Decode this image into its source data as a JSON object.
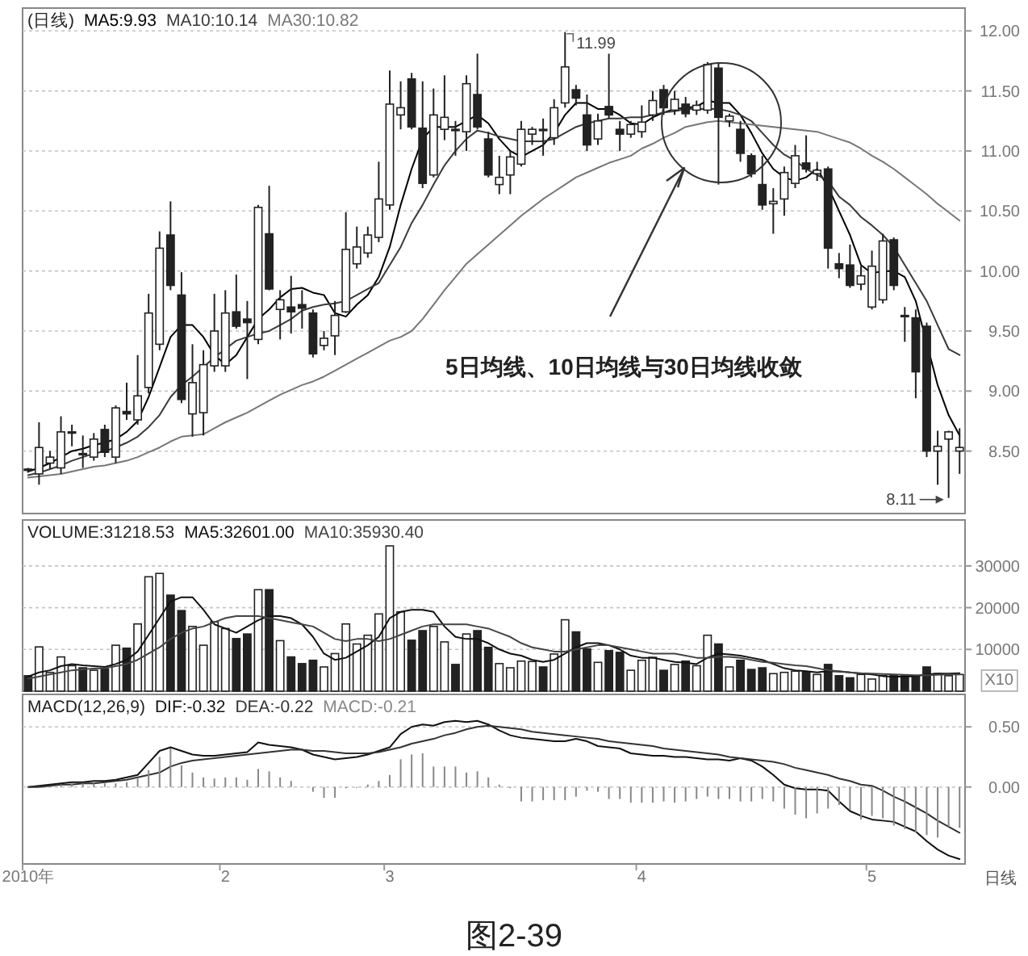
{
  "chart_data": [
    {
      "type": "candlestick",
      "title": "(日线)",
      "categories": [
        null,
        null,
        null,
        null,
        null,
        null,
        null,
        null,
        null,
        null,
        null,
        null,
        null,
        null,
        null,
        null,
        null,
        null,
        null,
        null,
        null,
        null,
        null,
        null,
        null,
        null,
        null,
        null,
        null,
        null,
        null,
        null,
        null,
        null,
        null,
        null,
        null,
        null,
        null,
        null,
        null,
        null,
        null,
        null,
        null,
        null,
        null,
        null,
        null,
        null,
        null,
        null,
        null,
        null,
        null,
        null,
        null,
        null,
        null,
        null,
        null,
        null,
        null,
        null,
        null,
        null,
        null,
        null,
        null,
        null,
        null,
        null,
        null,
        null,
        null,
        null,
        null,
        null,
        null,
        null,
        null,
        null,
        null,
        null,
        null,
        null
      ],
      "ohlc": [
        [
          8.35,
          8.36,
          8.32,
          8.34
        ],
        [
          8.31,
          8.74,
          8.22,
          8.53
        ],
        [
          8.4,
          8.5,
          8.35,
          8.45
        ],
        [
          8.36,
          8.79,
          8.31,
          8.66
        ],
        [
          8.65,
          8.72,
          8.54,
          8.66
        ],
        [
          8.48,
          8.63,
          8.36,
          8.47
        ],
        [
          8.45,
          8.65,
          8.42,
          8.6
        ],
        [
          8.68,
          8.72,
          8.45,
          8.49
        ],
        [
          8.45,
          8.88,
          8.4,
          8.86
        ],
        [
          8.83,
          9.07,
          8.76,
          8.81
        ],
        [
          8.76,
          9.3,
          8.72,
          8.96
        ],
        [
          9.03,
          9.81,
          8.98,
          9.65
        ],
        [
          9.39,
          10.33,
          9.34,
          10.19
        ],
        [
          10.3,
          10.58,
          9.84,
          9.88
        ],
        [
          9.8,
          9.99,
          8.9,
          8.93
        ],
        [
          8.81,
          9.39,
          8.62,
          9.07
        ],
        [
          8.82,
          9.34,
          8.63,
          9.22
        ],
        [
          9.21,
          9.81,
          9.16,
          9.5
        ],
        [
          9.21,
          9.84,
          9.16,
          9.65
        ],
        [
          9.66,
          9.97,
          9.52,
          9.54
        ],
        [
          9.6,
          9.75,
          9.1,
          9.57
        ],
        [
          9.43,
          10.55,
          9.39,
          10.53
        ],
        [
          10.31,
          10.71,
          9.84,
          9.85
        ],
        [
          9.68,
          9.84,
          9.43,
          9.76
        ],
        [
          9.7,
          9.96,
          9.48,
          9.66
        ],
        [
          9.72,
          9.84,
          9.52,
          9.69
        ],
        [
          9.65,
          9.68,
          9.28,
          9.31
        ],
        [
          9.38,
          9.5,
          9.34,
          9.44
        ],
        [
          9.46,
          9.75,
          9.3,
          9.63
        ],
        [
          9.66,
          10.49,
          9.65,
          10.18
        ],
        [
          10.06,
          10.37,
          10.02,
          10.2
        ],
        [
          10.15,
          10.37,
          10.11,
          10.3
        ],
        [
          10.28,
          10.91,
          10.24,
          10.6
        ],
        [
          10.55,
          11.67,
          10.51,
          11.39
        ],
        [
          11.3,
          11.58,
          11.18,
          11.36
        ],
        [
          11.6,
          11.65,
          11.18,
          11.2
        ],
        [
          11.19,
          11.58,
          10.69,
          10.73
        ],
        [
          10.8,
          11.52,
          10.78,
          11.3
        ],
        [
          11.18,
          11.63,
          11.09,
          11.28
        ],
        [
          11.18,
          11.25,
          10.96,
          11.17
        ],
        [
          11.16,
          11.63,
          11.0,
          11.56
        ],
        [
          11.47,
          11.81,
          11.18,
          11.2
        ],
        [
          11.1,
          11.16,
          10.78,
          10.8
        ],
        [
          10.72,
          10.96,
          10.64,
          10.78
        ],
        [
          10.8,
          11.0,
          10.64,
          10.95
        ],
        [
          10.89,
          11.25,
          10.87,
          11.18
        ],
        [
          11.14,
          11.2,
          11.05,
          11.18
        ],
        [
          11.18,
          11.27,
          10.96,
          11.17
        ],
        [
          11.11,
          11.43,
          11.05,
          11.36
        ],
        [
          11.4,
          11.99,
          11.36,
          11.7
        ],
        [
          11.51,
          11.55,
          11.38,
          11.44
        ],
        [
          11.3,
          11.47,
          11.0,
          11.05
        ],
        [
          11.1,
          11.31,
          11.05,
          11.25
        ],
        [
          11.37,
          11.81,
          11.27,
          11.3
        ],
        [
          11.18,
          11.25,
          11.0,
          11.14
        ],
        [
          11.14,
          11.25,
          11.11,
          11.22
        ],
        [
          11.16,
          11.38,
          11.11,
          11.24
        ],
        [
          11.3,
          11.5,
          11.25,
          11.42
        ],
        [
          11.51,
          11.55,
          11.3,
          11.36
        ],
        [
          11.34,
          11.5,
          11.3,
          11.43
        ],
        [
          11.39,
          11.45,
          11.28,
          11.31
        ],
        [
          11.34,
          11.42,
          11.3,
          11.38
        ],
        [
          11.34,
          11.74,
          11.31,
          11.72
        ],
        [
          11.69,
          11.74,
          10.72,
          11.28
        ],
        [
          11.25,
          11.31,
          11.2,
          11.29
        ],
        [
          11.18,
          11.25,
          10.91,
          10.98
        ],
        [
          10.96,
          10.98,
          10.78,
          10.81
        ],
        [
          10.72,
          10.96,
          10.51,
          10.55
        ],
        [
          10.56,
          10.69,
          10.31,
          10.58
        ],
        [
          10.6,
          10.87,
          10.46,
          10.82
        ],
        [
          10.73,
          11.05,
          10.69,
          10.96
        ],
        [
          10.9,
          11.13,
          10.82,
          10.85
        ],
        [
          10.81,
          10.91,
          10.75,
          10.84
        ],
        [
          10.85,
          10.87,
          10.02,
          10.19
        ],
        [
          10.06,
          10.15,
          9.94,
          10.02
        ],
        [
          10.05,
          10.22,
          9.86,
          9.88
        ],
        [
          9.89,
          10.04,
          9.84,
          9.96
        ],
        [
          9.7,
          10.17,
          9.68,
          10.04
        ],
        [
          9.76,
          10.31,
          9.73,
          10.25
        ],
        [
          10.26,
          10.28,
          9.84,
          9.88
        ],
        [
          9.63,
          9.7,
          9.41,
          9.62
        ],
        [
          9.61,
          9.68,
          8.94,
          9.16
        ],
        [
          9.54,
          9.57,
          8.45,
          8.5
        ],
        [
          8.5,
          8.67,
          8.22,
          8.54
        ],
        [
          8.6,
          8.67,
          8.11,
          8.66
        ],
        [
          8.5,
          8.69,
          8.31,
          8.53
        ]
      ],
      "colors": [
        "#222222",
        "#ffffff",
        "#ffffff",
        "#ffffff",
        "#ffffff",
        "#222222",
        "#ffffff",
        "#222222",
        "#ffffff",
        "#222222",
        "#ffffff",
        "#ffffff",
        "#ffffff",
        "#222222",
        "#222222",
        "#ffffff",
        "#ffffff",
        "#ffffff",
        "#ffffff",
        "#222222",
        "#222222",
        "#ffffff",
        "#222222",
        "#ffffff",
        "#222222",
        "#222222",
        "#222222",
        "#ffffff",
        "#ffffff",
        "#ffffff",
        "#ffffff",
        "#ffffff",
        "#ffffff",
        "#ffffff",
        "#ffffff",
        "#222222",
        "#222222",
        "#ffffff",
        "#ffffff",
        "#222222",
        "#ffffff",
        "#222222",
        "#222222",
        "#ffffff",
        "#ffffff",
        "#ffffff",
        "#ffffff",
        "#222222",
        "#ffffff",
        "#ffffff",
        "#222222",
        "#222222",
        "#ffffff",
        "#222222",
        "#222222",
        "#ffffff",
        "#ffffff",
        "#ffffff",
        "#222222",
        "#ffffff",
        "#222222",
        "#ffffff",
        "#ffffff",
        "#222222",
        "#ffffff",
        "#222222",
        "#222222",
        "#222222",
        "#ffffff",
        "#ffffff",
        "#ffffff",
        "#222222",
        "#ffffff",
        "#222222",
        "#222222",
        "#222222",
        "#ffffff",
        "#ffffff",
        "#ffffff",
        "#222222",
        "#222222",
        "#222222",
        "#222222",
        "#ffffff",
        "#ffffff",
        "#ffffff"
      ],
      "series": [
        {
          "name": "MA5:9.93",
          "type": "line",
          "color": "#000000",
          "values": [
            8.33,
            8.36,
            8.4,
            8.45,
            8.5,
            8.52,
            8.55,
            8.57,
            8.6,
            8.66,
            8.75,
            8.95,
            9.2,
            9.45,
            9.55,
            9.55,
            9.45,
            9.3,
            9.22,
            9.3,
            9.45,
            9.6,
            9.68,
            9.78,
            9.85,
            9.86,
            9.82,
            9.8,
            9.65,
            9.62,
            9.72,
            9.8,
            9.95,
            10.2,
            10.55,
            10.85,
            11.1,
            11.2,
            11.2,
            11.2,
            11.25,
            11.3,
            11.23,
            11.1,
            11.0,
            10.95,
            11.0,
            11.05,
            11.15,
            11.3,
            11.4,
            11.4,
            11.35,
            11.35,
            11.3,
            11.23,
            11.22,
            11.28,
            11.32,
            11.35,
            11.36,
            11.37,
            11.42,
            11.4,
            11.4,
            11.3,
            11.15,
            10.98,
            10.85,
            10.78,
            10.75,
            10.78,
            10.85,
            10.7,
            10.5,
            10.3,
            10.05,
            9.98,
            10.0,
            10.0,
            9.95,
            9.75,
            9.4,
            9.05,
            8.8,
            8.63
          ]
        },
        {
          "name": "MA10:10.14",
          "type": "line",
          "color": "#3a3a3a",
          "values": [
            8.3,
            8.32,
            8.35,
            8.38,
            8.42,
            8.45,
            8.48,
            8.5,
            8.53,
            8.57,
            8.62,
            8.7,
            8.8,
            8.95,
            9.05,
            9.12,
            9.2,
            9.28,
            9.35,
            9.42,
            9.45,
            9.48,
            9.5,
            9.55,
            9.6,
            9.67,
            9.7,
            9.72,
            9.73,
            9.75,
            9.8,
            9.85,
            9.9,
            10.05,
            10.2,
            10.4,
            10.55,
            10.72,
            10.88,
            11.0,
            11.1,
            11.17,
            11.15,
            11.12,
            11.1,
            11.08,
            11.08,
            11.08,
            11.1,
            11.15,
            11.2,
            11.23,
            11.25,
            11.27,
            11.27,
            11.28,
            11.28,
            11.3,
            11.32,
            11.33,
            11.35,
            11.35,
            11.35,
            11.35,
            11.33,
            11.3,
            11.25,
            11.15,
            11.05,
            10.97,
            10.92,
            10.85,
            10.8,
            10.75,
            10.62,
            10.55,
            10.45,
            10.38,
            10.3,
            10.2,
            10.05,
            9.9,
            9.75,
            9.55,
            9.35,
            9.3
          ]
        },
        {
          "name": "MA30:10.82",
          "type": "line",
          "color": "#777777",
          "values": [
            8.28,
            8.29,
            8.3,
            8.31,
            8.33,
            8.35,
            8.37,
            8.38,
            8.4,
            8.42,
            8.45,
            8.49,
            8.53,
            8.58,
            8.62,
            8.63,
            8.64,
            8.69,
            8.74,
            8.78,
            8.82,
            8.87,
            8.92,
            8.97,
            9.01,
            9.05,
            9.08,
            9.12,
            9.17,
            9.22,
            9.27,
            9.32,
            9.37,
            9.42,
            9.45,
            9.5,
            9.6,
            9.72,
            9.84,
            9.95,
            10.06,
            10.14,
            10.22,
            10.3,
            10.38,
            10.46,
            10.53,
            10.6,
            10.66,
            10.72,
            10.78,
            10.82,
            10.86,
            10.9,
            10.93,
            10.96,
            11.02,
            11.06,
            11.11,
            11.15,
            11.2,
            11.22,
            11.24,
            11.25,
            11.24,
            11.23,
            11.22,
            11.21,
            11.2,
            11.19,
            11.18,
            11.17,
            11.16,
            11.13,
            11.1,
            11.07,
            11.02,
            10.96,
            10.91,
            10.85,
            10.78,
            10.71,
            10.64,
            10.56,
            10.49,
            10.42
          ]
        }
      ],
      "ylim": [
        7.98,
        12.19
      ],
      "yticks": [
        {
          "value": 8.5,
          "label": "8.50"
        },
        {
          "value": 9,
          "label": "9.00"
        },
        {
          "value": 9.5,
          "label": "9.50"
        },
        {
          "value": 10,
          "label": "10.00"
        },
        {
          "value": 10.5,
          "label": "10.50"
        },
        {
          "value": 11,
          "label": "11.00"
        },
        {
          "value": 11.5,
          "label": "11.50"
        },
        {
          "value": 12,
          "label": "12.00"
        }
      ],
      "grid": "y",
      "legend": "top left",
      "tick_labels": "y",
      "annotations": [
        "11.99",
        "8.11",
        "5日均线、10日均线与30日均线收敛"
      ]
    },
    {
      "type": "bar",
      "categories": [
        null,
        null,
        null,
        null,
        null,
        null,
        null,
        null,
        null,
        null,
        null,
        null,
        null,
        null,
        null,
        null,
        null,
        null,
        null,
        null,
        null,
        null,
        null,
        null,
        null,
        null,
        null,
        null,
        null,
        null,
        null,
        null,
        null,
        null,
        null,
        null,
        null,
        null,
        null,
        null,
        null,
        null,
        null,
        null,
        null,
        null,
        null,
        null,
        null,
        null,
        null,
        null,
        null,
        null,
        null,
        null,
        null,
        null,
        null,
        null,
        null,
        null,
        null,
        null,
        null,
        null,
        null,
        null,
        null,
        null,
        null,
        null,
        null,
        null,
        null,
        null,
        null,
        null,
        null,
        null,
        null,
        null,
        null,
        null,
        null,
        null
      ],
      "series": [
        {
          "name": "VOLUME:31218.53",
          "type": "bar",
          "color": "#222222",
          "colors": [
            "#222222",
            "#ffffff",
            "#ffffff",
            "#ffffff",
            "#ffffff",
            "#222222",
            "#ffffff",
            "#222222",
            "#ffffff",
            "#222222",
            "#ffffff",
            "#ffffff",
            "#ffffff",
            "#222222",
            "#222222",
            "#ffffff",
            "#ffffff",
            "#ffffff",
            "#ffffff",
            "#222222",
            "#222222",
            "#ffffff",
            "#222222",
            "#ffffff",
            "#222222",
            "#222222",
            "#222222",
            "#ffffff",
            "#ffffff",
            "#ffffff",
            "#ffffff",
            "#ffffff",
            "#ffffff",
            "#ffffff",
            "#ffffff",
            "#222222",
            "#222222",
            "#ffffff",
            "#ffffff",
            "#222222",
            "#ffffff",
            "#222222",
            "#222222",
            "#ffffff",
            "#ffffff",
            "#ffffff",
            "#ffffff",
            "#222222",
            "#ffffff",
            "#ffffff",
            "#222222",
            "#222222",
            "#ffffff",
            "#222222",
            "#222222",
            "#ffffff",
            "#ffffff",
            "#ffffff",
            "#222222",
            "#ffffff",
            "#222222",
            "#ffffff",
            "#ffffff",
            "#222222",
            "#ffffff",
            "#222222",
            "#222222",
            "#222222",
            "#ffffff",
            "#ffffff",
            "#ffffff",
            "#222222",
            "#ffffff",
            "#222222",
            "#222222",
            "#222222",
            "#ffffff",
            "#ffffff",
            "#ffffff",
            "#222222",
            "#222222",
            "#222222",
            "#222222",
            "#ffffff",
            "#ffffff",
            "#ffffff"
          ],
          "values": [
            3700,
            10600,
            4500,
            8200,
            6100,
            5600,
            5000,
            5300,
            11000,
            10300,
            16100,
            27400,
            28200,
            23000,
            19300,
            15500,
            11000,
            16600,
            15000,
            12600,
            13700,
            24300,
            24300,
            12100,
            8200,
            6600,
            7400,
            5800,
            9000,
            16100,
            11300,
            13400,
            18500,
            34800,
            19000,
            12200,
            14500,
            15500,
            11800,
            6400,
            13700,
            14500,
            10500,
            6600,
            5600,
            7200,
            7100,
            5800,
            8900,
            17100,
            14200,
            10100,
            6900,
            9700,
            9300,
            5000,
            7400,
            8100,
            5000,
            6400,
            7200,
            6100,
            13400,
            11300,
            5800,
            7400,
            5200,
            5600,
            4200,
            4500,
            4800,
            4500,
            4000,
            6400,
            3700,
            3200,
            4000,
            2900,
            3700,
            3700,
            3700,
            3700,
            5800,
            4200,
            3700,
            4000
          ]
        },
        {
          "name": "MA5:32601.00",
          "type": "line",
          "color": "#111111",
          "values": [
            3500,
            4500,
            5000,
            6000,
            6500,
            6200,
            6000,
            5800,
            6500,
            7500,
            9500,
            13500,
            17500,
            21500,
            22500,
            22500,
            19500,
            16000,
            15000,
            14000,
            15500,
            17000,
            18000,
            18000,
            17500,
            16000,
            13000,
            9000,
            7500,
            8000,
            9500,
            11000,
            13000,
            17500,
            19000,
            19500,
            19500,
            19000,
            15500,
            13000,
            12500,
            12500,
            11500,
            10000,
            9000,
            8500,
            7500,
            7000,
            7500,
            9000,
            10500,
            11500,
            11500,
            11000,
            10000,
            8500,
            8000,
            8000,
            7500,
            7000,
            6800,
            6500,
            8000,
            9000,
            8800,
            8500,
            8000,
            7500,
            6500,
            5500,
            5000,
            4800,
            4500,
            4800,
            4700,
            4500,
            4200,
            4000,
            3600,
            3500,
            3500,
            3600,
            4000,
            4200,
            4200,
            4300
          ]
        },
        {
          "name": "MA10:35930.40",
          "type": "line",
          "color": "#444444",
          "values": [
            3000,
            3500,
            4000,
            4500,
            5000,
            5200,
            5400,
            5500,
            6000,
            6500,
            7500,
            9000,
            10500,
            12500,
            14000,
            15000,
            15500,
            16500,
            17500,
            18000,
            18000,
            18000,
            17500,
            17000,
            16500,
            16000,
            15500,
            14000,
            12500,
            12000,
            12500,
            12500,
            12000,
            12500,
            13500,
            14500,
            15500,
            16000,
            16000,
            16000,
            16000,
            15500,
            15000,
            14000,
            13000,
            11500,
            10500,
            10000,
            9500,
            9500,
            10000,
            10500,
            11000,
            11000,
            10500,
            10000,
            9500,
            9000,
            9000,
            9000,
            8500,
            8000,
            8000,
            8200,
            8200,
            8000,
            7500,
            7000,
            6800,
            6500,
            6200,
            6000,
            5500,
            5000,
            4800,
            4500,
            4300,
            4200,
            4100,
            4000,
            3900,
            3800,
            3800,
            3900,
            4000,
            4000
          ]
        }
      ],
      "ylim": [
        0,
        41000
      ],
      "yticks": [
        10000,
        20000,
        30000
      ],
      "ylabel": "X10",
      "grid": "y",
      "legend": "top left",
      "tick_labels": "y"
    },
    {
      "type": "bar",
      "title": "MACD(12,26,9)",
      "xlabel": "日线",
      "categories": [
        "2010年",
        null,
        null,
        null,
        null,
        null,
        null,
        null,
        null,
        null,
        null,
        null,
        null,
        null,
        null,
        null,
        null,
        null,
        "2",
        null,
        null,
        null,
        null,
        null,
        null,
        null,
        null,
        null,
        null,
        null,
        null,
        null,
        null,
        "3",
        null,
        null,
        null,
        null,
        null,
        null,
        null,
        null,
        null,
        null,
        null,
        null,
        null,
        null,
        null,
        null,
        null,
        null,
        null,
        null,
        null,
        null,
        "4",
        null,
        null,
        null,
        null,
        null,
        null,
        null,
        null,
        null,
        null,
        null,
        null,
        null,
        null,
        null,
        null,
        null,
        null,
        null,
        null,
        "5",
        null,
        null,
        null,
        null,
        null,
        null,
        null,
        null
      ],
      "series": [
        {
          "name": "DIF:-0.32",
          "type": "line",
          "color": "#111111",
          "values": [
            0,
            0.01,
            0.02,
            0.03,
            0.04,
            0.04,
            0.05,
            0.05,
            0.06,
            0.08,
            0.1,
            0.2,
            0.3,
            0.33,
            0.3,
            0.27,
            0.26,
            0.26,
            0.27,
            0.28,
            0.29,
            0.37,
            0.35,
            0.34,
            0.33,
            0.31,
            0.27,
            0.25,
            0.23,
            0.24,
            0.25,
            0.27,
            0.3,
            0.33,
            0.44,
            0.5,
            0.52,
            0.51,
            0.54,
            0.55,
            0.54,
            0.55,
            0.52,
            0.47,
            0.43,
            0.41,
            0.4,
            0.39,
            0.38,
            0.38,
            0.4,
            0.38,
            0.34,
            0.33,
            0.32,
            0.28,
            0.27,
            0.26,
            0.26,
            0.25,
            0.25,
            0.24,
            0.23,
            0.23,
            0.22,
            0.24,
            0.22,
            0.17,
            0.1,
            0.02,
            -0.01,
            -0.02,
            -0.02,
            -0.03,
            -0.12,
            -0.2,
            -0.24,
            -0.27,
            -0.28,
            -0.29,
            -0.33,
            -0.37,
            -0.45,
            -0.52,
            -0.57,
            -0.6
          ]
        },
        {
          "name": "DEA:-0.22",
          "type": "line",
          "color": "#333333",
          "values": [
            0,
            0,
            0.01,
            0.02,
            0.02,
            0.03,
            0.03,
            0.04,
            0.05,
            0.06,
            0.08,
            0.1,
            0.12,
            0.17,
            0.2,
            0.22,
            0.23,
            0.24,
            0.25,
            0.26,
            0.27,
            0.28,
            0.29,
            0.3,
            0.31,
            0.31,
            0.3,
            0.3,
            0.29,
            0.28,
            0.28,
            0.28,
            0.29,
            0.31,
            0.33,
            0.36,
            0.38,
            0.4,
            0.43,
            0.45,
            0.48,
            0.5,
            0.51,
            0.5,
            0.49,
            0.48,
            0.46,
            0.45,
            0.44,
            0.43,
            0.42,
            0.41,
            0.4,
            0.38,
            0.37,
            0.36,
            0.35,
            0.34,
            0.32,
            0.31,
            0.3,
            0.29,
            0.28,
            0.27,
            0.25,
            0.24,
            0.23,
            0.22,
            0.21,
            0.19,
            0.16,
            0.14,
            0.12,
            0.1,
            0.07,
            0.05,
            0.02,
            0.01,
            -0.03,
            -0.08,
            -0.12,
            -0.17,
            -0.22,
            -0.28,
            -0.33,
            -0.38
          ]
        },
        {
          "name": "MACD:-0.21",
          "type": "bar",
          "color": "#888888",
          "values": [
            0,
            0,
            null,
            0.02,
            0.03,
            0.03,
            0.03,
            0.03,
            0.03,
            0.04,
            0.07,
            0.14,
            0.25,
            0.32,
            0.18,
            0.12,
            0.08,
            0.07,
            0.08,
            0.08,
            0.06,
            0.15,
            0.13,
            0.08,
            0.05,
            null,
            -0.04,
            -0.09,
            -0.09,
            -0.01,
            0,
            0.02,
            0.05,
            0.1,
            0.23,
            0.27,
            0.28,
            0.17,
            0.17,
            0.17,
            0.12,
            0.13,
            0.08,
            0.02,
            -0.01,
            -0.12,
            -0.12,
            -0.11,
            -0.11,
            -0.11,
            -0.08,
            -0.03,
            -0.04,
            -0.1,
            -0.1,
            -0.13,
            -0.13,
            -0.13,
            -0.12,
            -0.13,
            -0.12,
            -0.1,
            -0.08,
            -0.1,
            -0.1,
            -0.12,
            -0.12,
            -0.1,
            -0.12,
            -0.18,
            -0.23,
            -0.26,
            -0.22,
            -0.18,
            -0.15,
            -0.19,
            -0.27,
            -0.24,
            -0.26,
            -0.32,
            -0.35,
            -0.38,
            -0.4,
            -0.42,
            -0.33,
            -0.34
          ]
        }
      ],
      "ylim": [
        -0.64,
        0.77
      ],
      "yticks": [
        {
          "value": 0,
          "label": "0.00"
        },
        {
          "value": 0.5,
          "label": "0.50"
        }
      ],
      "grid": "y",
      "legend": "top left",
      "annotations": [
        "图2-39"
      ]
    }
  ]
}
